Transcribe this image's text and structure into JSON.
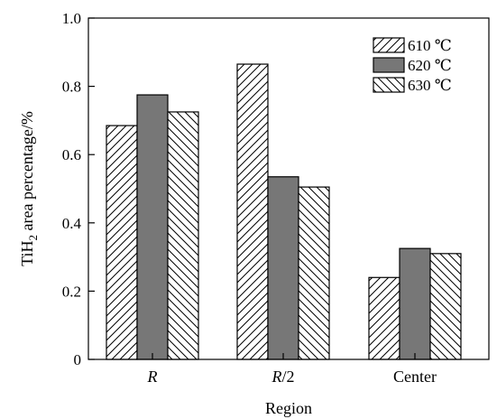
{
  "chart_data": {
    "type": "bar",
    "xlabel": "Region",
    "ylabel_parts": {
      "before_sub": "TiH",
      "sub": "2",
      "after_sub": " area percentage/%"
    },
    "categories": [
      {
        "base": "R",
        "suffix": "",
        "italic": true
      },
      {
        "base": "R",
        "suffix": "/2",
        "italic": true
      },
      {
        "base": "Center",
        "suffix": "",
        "italic": false
      }
    ],
    "series": [
      {
        "name": "610 ℃",
        "pattern": "hatch-forward",
        "values": [
          0.685,
          0.865,
          0.24
        ]
      },
      {
        "name": "620 ℃",
        "pattern": "solid-gray",
        "color": "#777777",
        "values": [
          0.775,
          0.535,
          0.325
        ]
      },
      {
        "name": "630 ℃",
        "pattern": "hatch-back",
        "values": [
          0.725,
          0.505,
          0.31
        ]
      }
    ],
    "ylim": [
      0,
      1.0
    ],
    "yticks": [
      "0",
      "0.2",
      "0.4",
      "0.6",
      "0.8",
      "1.0"
    ],
    "ytick_values": [
      0,
      0.2,
      0.4,
      0.6,
      0.8,
      1.0
    ],
    "legend_position": "top-right",
    "grid": false
  }
}
